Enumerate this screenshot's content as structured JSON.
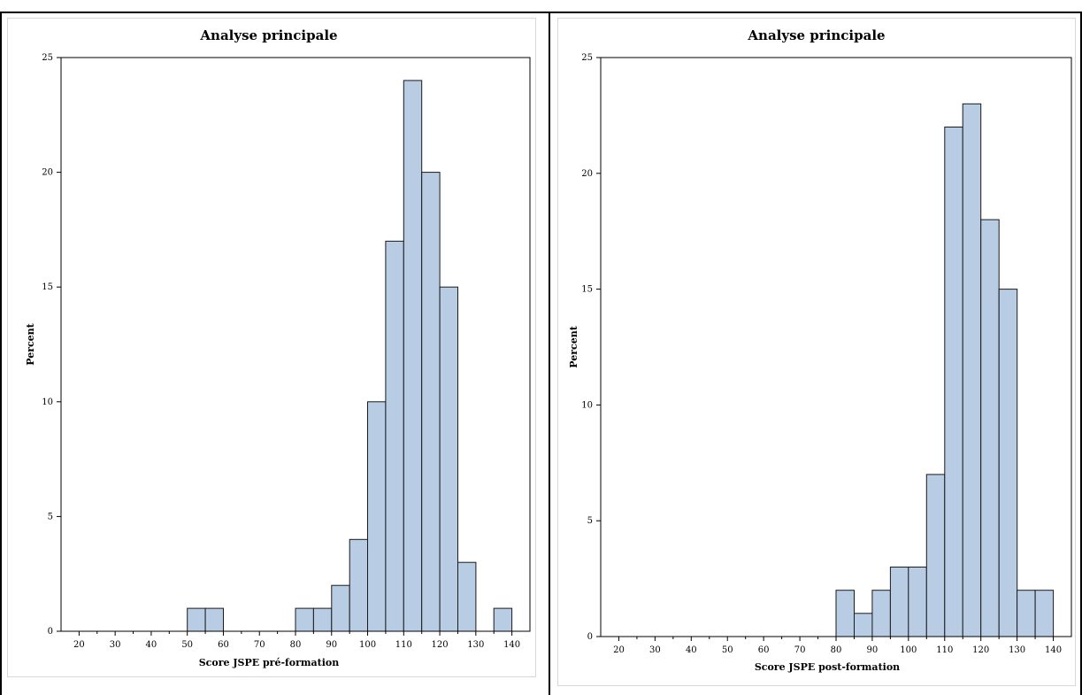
{
  "chart_data": [
    {
      "type": "bar",
      "title": "Analyse principale",
      "xlabel": "Score JSPE pré-formation",
      "ylabel": "Percent",
      "xlim": [
        15,
        145
      ],
      "ylim": [
        0,
        25
      ],
      "xticks": [
        "20",
        "30",
        "40",
        "50",
        "60",
        "70",
        "80",
        "90",
        "100",
        "110",
        "120",
        "130",
        "140"
      ],
      "yticks": [
        "0",
        "5",
        "10",
        "15",
        "20",
        "25"
      ],
      "bin_width": 5,
      "bins": [
        {
          "x": 52.5,
          "value": 1
        },
        {
          "x": 57.5,
          "value": 1
        },
        {
          "x": 82.5,
          "value": 1
        },
        {
          "x": 87.5,
          "value": 1
        },
        {
          "x": 92.5,
          "value": 2
        },
        {
          "x": 97.5,
          "value": 4
        },
        {
          "x": 102.5,
          "value": 10
        },
        {
          "x": 107.5,
          "value": 17
        },
        {
          "x": 112.5,
          "value": 24
        },
        {
          "x": 117.5,
          "value": 20
        },
        {
          "x": 122.5,
          "value": 15
        },
        {
          "x": 127.5,
          "value": 3
        },
        {
          "x": 137.5,
          "value": 1
        }
      ],
      "bar_color": "#b8cce4"
    },
    {
      "type": "bar",
      "title": "Analyse principale",
      "xlabel": "Score JSPE post-formation",
      "ylabel": "Percent",
      "xlim": [
        15,
        145
      ],
      "ylim": [
        0,
        25
      ],
      "xticks": [
        "20",
        "30",
        "40",
        "50",
        "60",
        "70",
        "80",
        "90",
        "100",
        "110",
        "120",
        "130",
        "140"
      ],
      "yticks": [
        "0",
        "5",
        "10",
        "15",
        "20",
        "25"
      ],
      "bin_width": 5,
      "bins": [
        {
          "x": 82.5,
          "value": 2
        },
        {
          "x": 87.5,
          "value": 1
        },
        {
          "x": 92.5,
          "value": 2
        },
        {
          "x": 97.5,
          "value": 3
        },
        {
          "x": 102.5,
          "value": 3
        },
        {
          "x": 107.5,
          "value": 7
        },
        {
          "x": 112.5,
          "value": 22
        },
        {
          "x": 117.5,
          "value": 23
        },
        {
          "x": 122.5,
          "value": 18
        },
        {
          "x": 127.5,
          "value": 15
        },
        {
          "x": 132.5,
          "value": 2
        },
        {
          "x": 137.5,
          "value": 2
        }
      ],
      "bar_color": "#b8cce4"
    }
  ]
}
